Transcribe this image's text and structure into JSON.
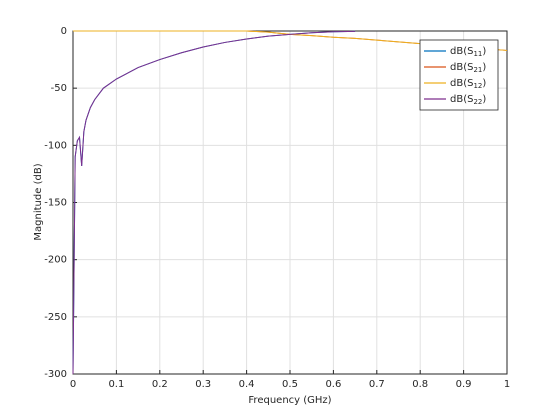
{
  "chart_data": {
    "type": "line",
    "xlabel": "Frequency (GHz)",
    "ylabel": "Magnitude (dB)",
    "x": [
      0,
      0.005,
      0.01,
      0.015,
      0.02,
      0.025,
      0.03,
      0.04,
      0.05,
      0.07,
      0.1,
      0.15,
      0.2,
      0.25,
      0.3,
      0.35,
      0.4,
      0.45,
      0.5,
      0.55,
      0.6,
      0.65,
      0.7,
      0.8,
      0.9,
      1
    ],
    "series": [
      {
        "name": "dB(S11)",
        "color": "#0072bd",
        "values": [
          -300,
          -110,
          -96,
          -93,
          -118,
          -88,
          -78,
          -67,
          -60,
          -50,
          -42,
          -32,
          -25,
          -19,
          -14,
          -10,
          -7,
          -4.5,
          -3,
          -1.5,
          -0.7,
          -0.3,
          null,
          null,
          null,
          null
        ]
      },
      {
        "name": "dB(S21)",
        "color": "#d95319",
        "values": [
          0,
          0,
          0,
          0,
          0,
          0,
          0,
          0,
          0,
          0,
          0,
          0,
          0,
          0,
          0,
          0,
          0,
          -1,
          -3,
          -4,
          -5.5,
          -6.5,
          -8,
          -11,
          -14,
          -17
        ]
      },
      {
        "name": "dB(S12)",
        "color": "#edb120",
        "values": [
          0,
          0,
          0,
          0,
          0,
          0,
          0,
          0,
          0,
          0,
          0,
          0,
          0,
          0,
          0,
          0,
          0,
          -1,
          -3,
          -4,
          -5.5,
          -6.5,
          -8,
          -11,
          -14,
          -17
        ]
      },
      {
        "name": "dB(S22)",
        "color": "#7e2f8e",
        "values": [
          -300,
          -110,
          -96,
          -93,
          -118,
          -88,
          -78,
          -67,
          -60,
          -50,
          -42,
          -32,
          -25,
          -19,
          -14,
          -10,
          -7,
          -4.5,
          -3,
          -1.5,
          -0.7,
          -0.3,
          null,
          null,
          null,
          null
        ]
      }
    ],
    "xlim": [
      0,
      1
    ],
    "xticks": [
      0,
      0.1,
      0.2,
      0.3,
      0.4,
      0.5,
      0.6,
      0.7,
      0.8,
      0.9,
      1
    ],
    "ylim": [
      -300,
      0
    ],
    "yticks": [
      -300,
      -250,
      -200,
      -150,
      -100,
      -50,
      0
    ],
    "grid": true,
    "legend": "northeast"
  }
}
